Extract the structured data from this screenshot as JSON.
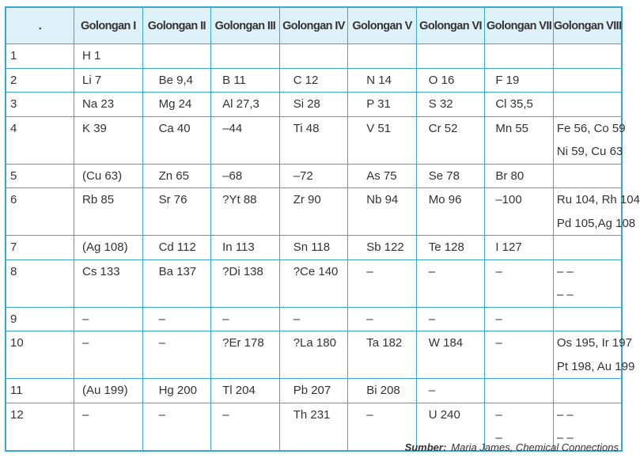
{
  "table": {
    "header": [
      ".",
      "Golongan I",
      "Golongan II",
      "Golongan III",
      "Golongan IV",
      "Golongan V",
      "Golongan VI",
      "Golongan VII",
      "Golongan VIII"
    ],
    "rows": [
      [
        "1",
        "H 1",
        null,
        null,
        null,
        null,
        null,
        null,
        null
      ],
      [
        "2",
        "Li 7",
        "Be 9,4",
        "B 11",
        "C 12",
        "N 14",
        "O 16",
        "F 19",
        null
      ],
      [
        "3",
        "Na 23",
        "Mg 24",
        "Al 27,3",
        "Si 28",
        "P 31",
        "S 32",
        "Cl 35,5",
        null
      ],
      [
        "4",
        "K 39",
        "Ca 40",
        "–44",
        "Ti 48",
        "V 51",
        "Cr 52",
        "Mn 55",
        [
          "Fe 56, Co 59",
          "Ni 59, Cu 63"
        ]
      ],
      [
        "5",
        "(Cu 63)",
        "Zn 65",
        "–68",
        "–72",
        "As 75",
        "Se 78",
        "Br 80",
        null
      ],
      [
        "6",
        "Rb 85",
        "Sr 76",
        "?Yt 88",
        "Zr 90",
        "Nb 94",
        "Mo 96",
        "–100",
        [
          "Ru 104, Rh 104",
          "Pd 105,Ag 108"
        ]
      ],
      [
        "7",
        "(Ag 108)",
        "Cd 112",
        "In 113",
        "Sn 118",
        "Sb 122",
        "Te 128",
        "I 127",
        null
      ],
      [
        "8",
        "Cs 133",
        "Ba 137",
        "?Di 138",
        "?Ce 140",
        "–",
        "–",
        "–",
        [
          "– –",
          "– –"
        ]
      ],
      [
        "9",
        "–",
        "–",
        "–",
        "–",
        "–",
        "–",
        "–",
        null
      ],
      [
        "10",
        "–",
        "–",
        "?Er 178",
        "?La 180",
        "Ta 182",
        "W 184",
        "–",
        [
          "Os 195, Ir 197",
          "Pt 198, Au 199"
        ]
      ],
      [
        "11",
        "(Au 199)",
        "Hg 200",
        "Tl 204",
        "Pb 207",
        "Bi 208",
        "–",
        null,
        null
      ],
      [
        "12",
        "–",
        "–",
        "–",
        "Th 231",
        "–",
        "U 240",
        [
          "–",
          "–"
        ],
        [
          "– –",
          "– –"
        ]
      ]
    ]
  },
  "source": {
    "label": "Sumber:",
    "text": "Maria James, Chemical Connections"
  }
}
